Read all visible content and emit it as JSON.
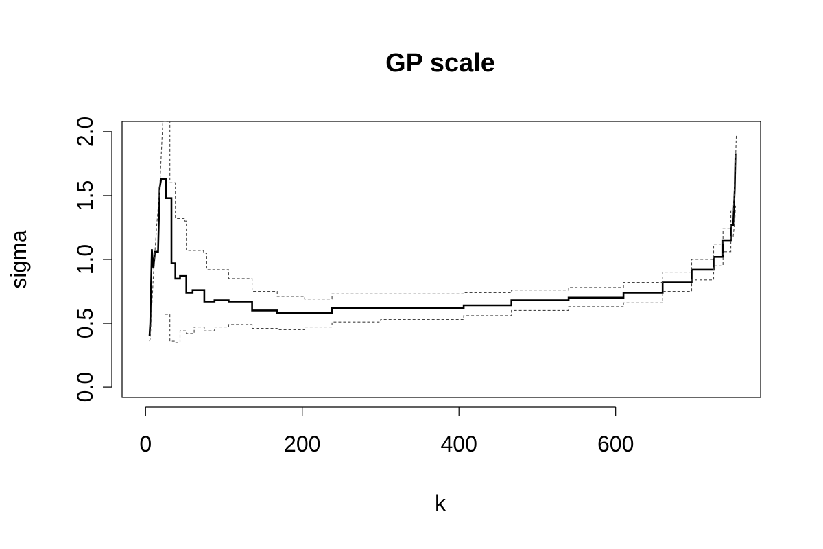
{
  "chart_data": {
    "type": "line",
    "title": "GP scale",
    "xlabel": "k",
    "ylabel": "sigma",
    "xlim": [
      -30,
      785
    ],
    "ylim": [
      -0.08,
      2.08
    ],
    "x_ticks": [
      0,
      200,
      400,
      600
    ],
    "x_tick_labels": [
      "0",
      "200",
      "400",
      "600"
    ],
    "y_ticks": [
      0.0,
      0.5,
      1.0,
      1.5,
      2.0
    ],
    "y_tick_labels": [
      "0.0",
      "0.5",
      "1.0",
      "1.5",
      "2.0"
    ],
    "grid": false,
    "series": [
      {
        "style": "solid",
        "points": [
          [
            5,
            0.4
          ],
          [
            6,
            0.5
          ],
          [
            8,
            1.08
          ],
          [
            10,
            0.93
          ],
          [
            12,
            1.06
          ],
          [
            16,
            1.06
          ],
          [
            18,
            1.56
          ],
          [
            20,
            1.63
          ],
          [
            26,
            1.63
          ],
          [
            26,
            1.48
          ],
          [
            33,
            1.48
          ],
          [
            33,
            0.97
          ],
          [
            38,
            0.97
          ],
          [
            38,
            0.85
          ],
          [
            44,
            0.85
          ],
          [
            44,
            0.87
          ],
          [
            52,
            0.87
          ],
          [
            52,
            0.74
          ],
          [
            60,
            0.74
          ],
          [
            60,
            0.76
          ],
          [
            75,
            0.76
          ],
          [
            75,
            0.67
          ],
          [
            88,
            0.67
          ],
          [
            88,
            0.68
          ],
          [
            106,
            0.68
          ],
          [
            106,
            0.67
          ],
          [
            136,
            0.67
          ],
          [
            136,
            0.6
          ],
          [
            168,
            0.6
          ],
          [
            168,
            0.58
          ],
          [
            238,
            0.58
          ],
          [
            238,
            0.62
          ],
          [
            406,
            0.62
          ],
          [
            406,
            0.64
          ],
          [
            467,
            0.64
          ],
          [
            467,
            0.68
          ],
          [
            540,
            0.68
          ],
          [
            540,
            0.7
          ],
          [
            610,
            0.7
          ],
          [
            610,
            0.74
          ],
          [
            660,
            0.74
          ],
          [
            660,
            0.82
          ],
          [
            697,
            0.82
          ],
          [
            697,
            0.92
          ],
          [
            725,
            0.92
          ],
          [
            725,
            1.02
          ],
          [
            737,
            1.02
          ],
          [
            737,
            1.15
          ],
          [
            747,
            1.15
          ],
          [
            747,
            1.27
          ],
          [
            750,
            1.27
          ],
          [
            751,
            1.42
          ],
          [
            752,
            1.55
          ],
          [
            753,
            1.83
          ]
        ]
      },
      {
        "style": "dashed",
        "points": [
          [
            5,
            0.36
          ],
          [
            6,
            0.38
          ],
          [
            10,
            0.88
          ],
          [
            14,
            1.25
          ],
          [
            18,
            1.55
          ],
          [
            22,
            2.08
          ],
          [
            31,
            2.08
          ],
          [
            31,
            1.6
          ],
          [
            38,
            1.6
          ],
          [
            38,
            1.32
          ],
          [
            50,
            1.32
          ],
          [
            50,
            1.3
          ],
          [
            52,
            1.3
          ],
          [
            52,
            1.07
          ],
          [
            74,
            1.07
          ],
          [
            74,
            1.05
          ],
          [
            78,
            1.05
          ],
          [
            78,
            0.92
          ],
          [
            106,
            0.92
          ],
          [
            106,
            0.85
          ],
          [
            136,
            0.85
          ],
          [
            136,
            0.75
          ],
          [
            168,
            0.75
          ],
          [
            168,
            0.71
          ],
          [
            203,
            0.71
          ],
          [
            203,
            0.69
          ],
          [
            238,
            0.69
          ],
          [
            238,
            0.73
          ],
          [
            406,
            0.73
          ],
          [
            406,
            0.74
          ],
          [
            467,
            0.74
          ],
          [
            467,
            0.76
          ],
          [
            540,
            0.76
          ],
          [
            540,
            0.78
          ],
          [
            610,
            0.78
          ],
          [
            610,
            0.82
          ],
          [
            660,
            0.82
          ],
          [
            660,
            0.9
          ],
          [
            697,
            0.9
          ],
          [
            697,
            1.0
          ],
          [
            725,
            1.0
          ],
          [
            725,
            1.12
          ],
          [
            737,
            1.12
          ],
          [
            737,
            1.24
          ],
          [
            747,
            1.24
          ],
          [
            747,
            1.38
          ],
          [
            750,
            1.38
          ],
          [
            752,
            1.6
          ],
          [
            754,
            1.97
          ]
        ]
      },
      {
        "style": "dashed",
        "points": [
          [
            25,
            0.57
          ],
          [
            31,
            0.57
          ],
          [
            31,
            0.36
          ],
          [
            38,
            0.36
          ],
          [
            38,
            0.35
          ],
          [
            44,
            0.35
          ],
          [
            44,
            0.44
          ],
          [
            52,
            0.44
          ],
          [
            52,
            0.42
          ],
          [
            62,
            0.42
          ],
          [
            62,
            0.47
          ],
          [
            75,
            0.47
          ],
          [
            75,
            0.44
          ],
          [
            88,
            0.44
          ],
          [
            88,
            0.47
          ],
          [
            106,
            0.47
          ],
          [
            106,
            0.49
          ],
          [
            136,
            0.49
          ],
          [
            136,
            0.46
          ],
          [
            168,
            0.46
          ],
          [
            168,
            0.45
          ],
          [
            203,
            0.45
          ],
          [
            203,
            0.47
          ],
          [
            238,
            0.47
          ],
          [
            238,
            0.51
          ],
          [
            300,
            0.51
          ],
          [
            300,
            0.53
          ],
          [
            406,
            0.53
          ],
          [
            406,
            0.56
          ],
          [
            467,
            0.56
          ],
          [
            467,
            0.6
          ],
          [
            540,
            0.6
          ],
          [
            540,
            0.63
          ],
          [
            610,
            0.63
          ],
          [
            610,
            0.66
          ],
          [
            660,
            0.66
          ],
          [
            660,
            0.75
          ],
          [
            697,
            0.75
          ],
          [
            697,
            0.84
          ],
          [
            725,
            0.84
          ],
          [
            725,
            0.95
          ],
          [
            737,
            0.95
          ],
          [
            737,
            1.06
          ],
          [
            747,
            1.06
          ],
          [
            747,
            1.18
          ],
          [
            750,
            1.18
          ],
          [
            752,
            1.3
          ],
          [
            753,
            1.42
          ]
        ]
      }
    ]
  }
}
